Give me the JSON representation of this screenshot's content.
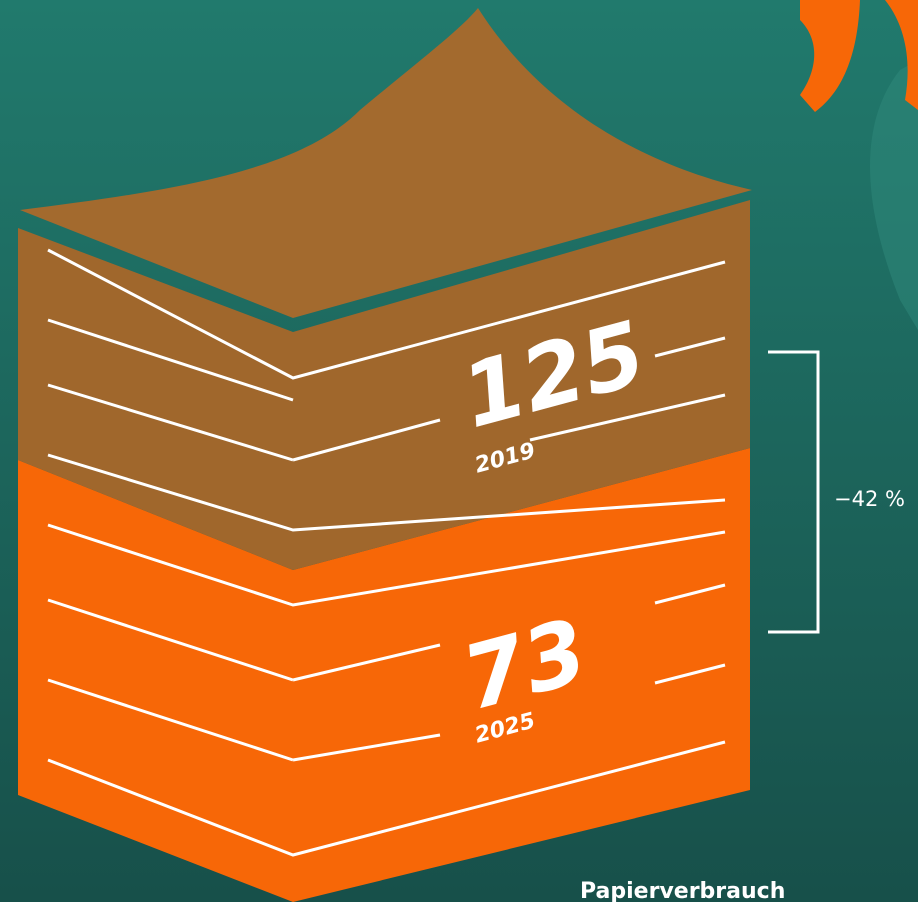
{
  "stack": {
    "upper": {
      "value": "125",
      "year": "2019"
    },
    "lower": {
      "value": "73",
      "year": "2025"
    }
  },
  "change": "−42 %",
  "caption": "Papierverbrauch"
}
